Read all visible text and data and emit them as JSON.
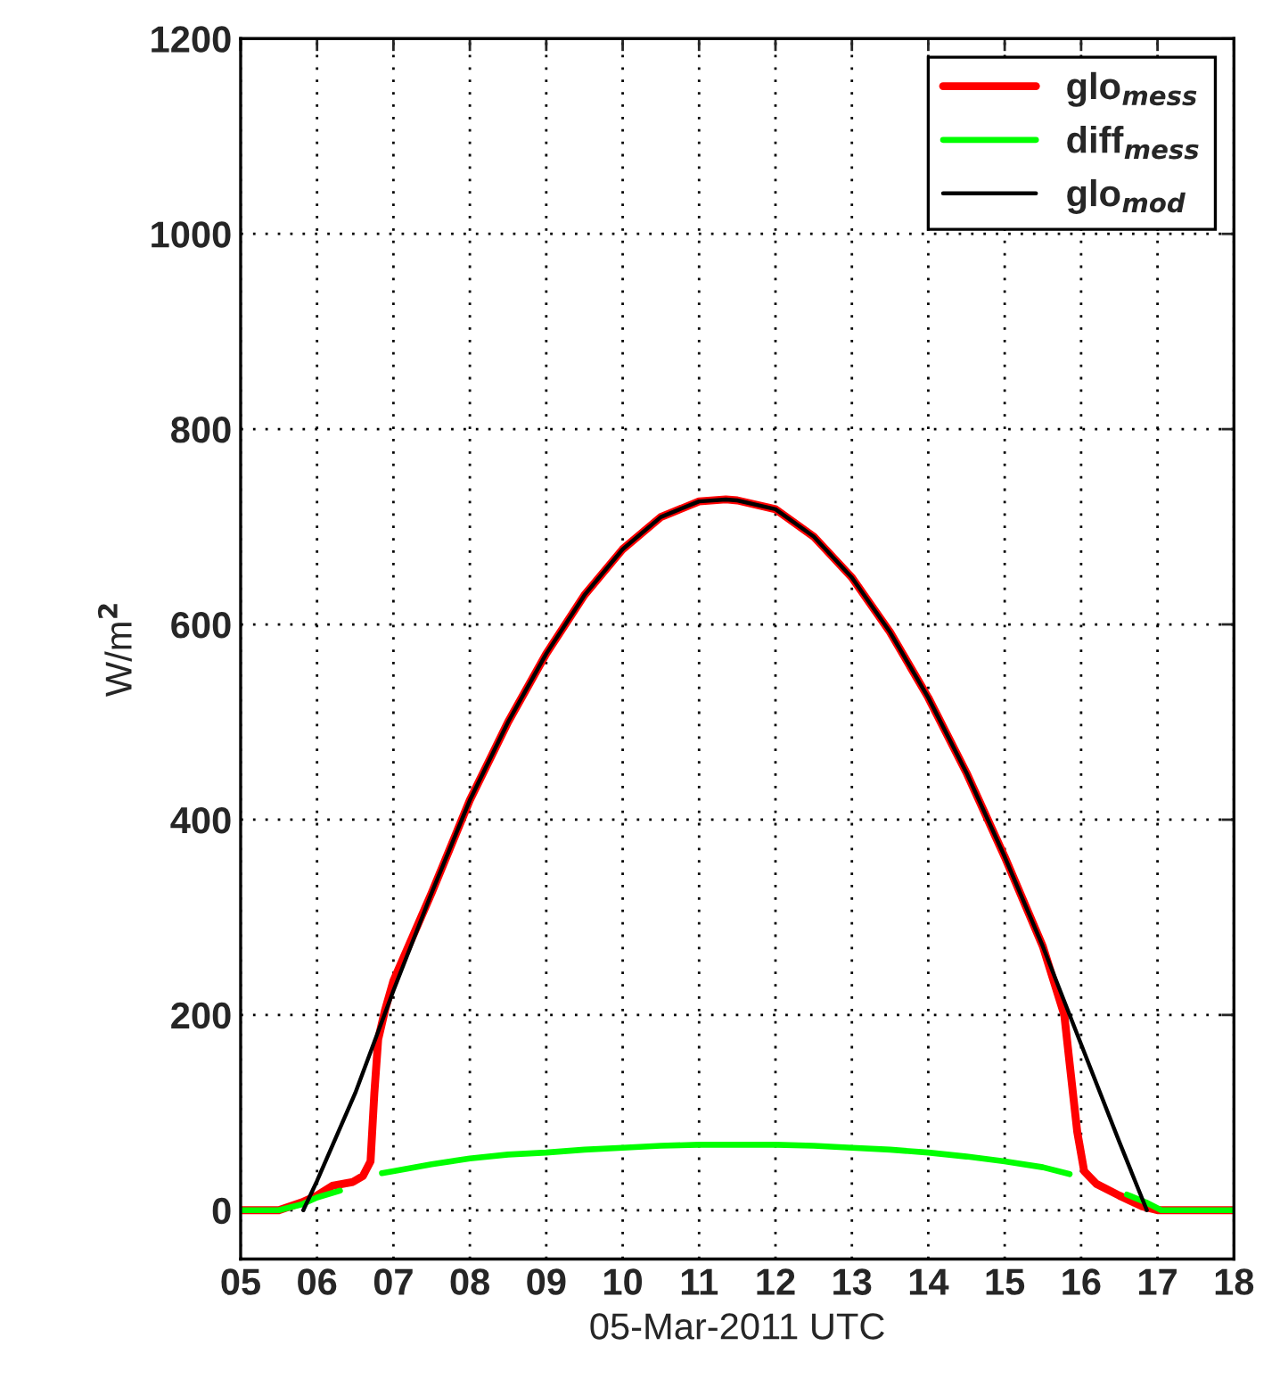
{
  "chart_data": {
    "type": "line",
    "xlabel": "05-Mar-2011 UTC",
    "ylabel": "W/m$^{2}$",
    "xlim": [
      5,
      18
    ],
    "xticks": [
      {
        "value": 5,
        "label": "05"
      },
      {
        "value": 6,
        "label": "06"
      },
      {
        "value": 7,
        "label": "07"
      },
      {
        "value": 8,
        "label": "08"
      },
      {
        "value": 9,
        "label": "09"
      },
      {
        "value": 10,
        "label": "10"
      },
      {
        "value": 11,
        "label": "11"
      },
      {
        "value": 12,
        "label": "12"
      },
      {
        "value": 13,
        "label": "13"
      },
      {
        "value": 14,
        "label": "14"
      },
      {
        "value": 15,
        "label": "15"
      },
      {
        "value": 16,
        "label": "16"
      },
      {
        "value": 17,
        "label": "17"
      },
      {
        "value": 18,
        "label": "18"
      }
    ],
    "ylim": [
      -50,
      1200
    ],
    "yticks": [
      0,
      200,
      400,
      600,
      800,
      1000,
      1200
    ],
    "grid": true,
    "legend": "top right",
    "marker": "none",
    "line_style": "solid",
    "series": [
      {
        "name": "glo$_{mess}$",
        "color": "#ff0000",
        "x": [
          5.0,
          5.5,
          5.8,
          6.0,
          6.2,
          6.47,
          6.6,
          6.7,
          6.75,
          6.8,
          6.89,
          7.0,
          7.5,
          8.0,
          8.5,
          9.0,
          9.5,
          10.0,
          10.5,
          11.0,
          11.35,
          11.5,
          12.0,
          12.5,
          13.0,
          13.5,
          14.0,
          14.5,
          15.0,
          15.5,
          15.78,
          15.85,
          15.95,
          16.04,
          16.2,
          16.5,
          16.8,
          17.0,
          17.5,
          18.0
        ],
        "values": [
          0,
          0,
          8,
          15,
          25,
          29,
          35,
          50,
          120,
          175,
          205,
          235,
          325,
          420,
          500,
          570,
          630,
          677,
          710,
          726,
          728,
          727,
          718,
          690,
          648,
          592,
          525,
          448,
          362,
          270,
          200,
          150,
          80,
          40,
          27,
          15,
          4,
          0,
          0,
          0
        ]
      },
      {
        "name": "diff$_{mess}$",
        "color": "#00ff00",
        "x": [
          5.0,
          5.5,
          5.8,
          6.0,
          6.3,
          6.55,
          6.85,
          7.0,
          7.5,
          8.0,
          8.5,
          9.0,
          9.5,
          10.0,
          10.5,
          11.0,
          11.5,
          12.0,
          12.5,
          13.0,
          13.5,
          14.0,
          14.5,
          15.0,
          15.5,
          15.85,
          16.2,
          16.6,
          16.85,
          17.05,
          17.5,
          18.0
        ],
        "values": [
          0,
          0,
          6,
          13,
          20,
          null,
          38,
          40,
          47,
          53,
          57,
          59,
          62,
          64,
          66,
          67,
          67,
          67,
          66,
          64,
          62,
          59,
          55,
          50,
          44,
          37,
          null,
          16,
          8,
          0,
          0,
          0
        ]
      },
      {
        "name": "glo$_{mod}$",
        "color": "#000000",
        "x": [
          5.82,
          6.0,
          6.5,
          7.0,
          7.5,
          8.0,
          8.5,
          9.0,
          9.5,
          10.0,
          10.5,
          11.0,
          11.35,
          11.5,
          12.0,
          12.5,
          13.0,
          13.5,
          14.0,
          14.5,
          15.0,
          15.5,
          16.0,
          16.5,
          16.86
        ],
        "values": [
          0,
          30,
          120,
          225,
          325,
          420,
          500,
          570,
          630,
          677,
          710,
          726,
          728,
          727,
          718,
          690,
          648,
          592,
          525,
          448,
          362,
          270,
          170,
          70,
          0
        ]
      }
    ]
  }
}
